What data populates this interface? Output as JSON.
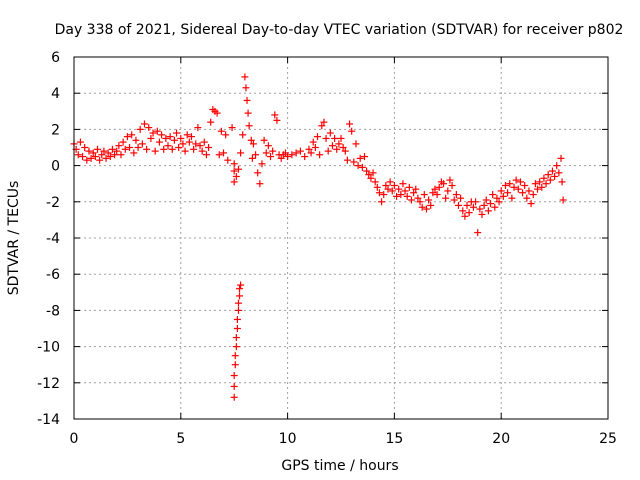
{
  "chart_data": {
    "type": "scatter",
    "title": "Day 338 of 2021, Sidereal Day-to-day VTEC variation (SDTVAR) for receiver p802",
    "xlabel": "GPS time / hours",
    "ylabel": "SDTVAR / TECUs",
    "xlim": [
      0,
      25
    ],
    "ylim": [
      -14,
      6
    ],
    "x_ticks": [
      0,
      5,
      10,
      15,
      20,
      25
    ],
    "y_ticks": [
      -14,
      -12,
      -10,
      -8,
      -6,
      -4,
      -2,
      0,
      2,
      4,
      6
    ],
    "grid": true,
    "marker": "+",
    "series": [
      {
        "name": "SDTVAR",
        "color": "#ff0000",
        "points": [
          [
            0.0,
            1.2
          ],
          [
            0.1,
            0.9
          ],
          [
            0.2,
            0.6
          ],
          [
            0.3,
            1.3
          ],
          [
            0.4,
            0.5
          ],
          [
            0.5,
            1.0
          ],
          [
            0.6,
            0.3
          ],
          [
            0.7,
            0.8
          ],
          [
            0.8,
            0.4
          ],
          [
            0.9,
            0.7
          ],
          [
            1.0,
            0.5
          ],
          [
            1.1,
            0.9
          ],
          [
            1.2,
            0.3
          ],
          [
            1.3,
            0.6
          ],
          [
            1.4,
            0.8
          ],
          [
            1.5,
            0.4
          ],
          [
            1.6,
            0.7
          ],
          [
            1.7,
            0.5
          ],
          [
            1.8,
            0.9
          ],
          [
            1.9,
            0.6
          ],
          [
            2.0,
            0.8
          ],
          [
            2.1,
            1.1
          ],
          [
            2.2,
            0.6
          ],
          [
            2.3,
            1.3
          ],
          [
            2.4,
            0.9
          ],
          [
            2.5,
            1.6
          ],
          [
            2.6,
            1.0
          ],
          [
            2.7,
            1.7
          ],
          [
            2.8,
            0.7
          ],
          [
            2.9,
            1.4
          ],
          [
            3.0,
            1.0
          ],
          [
            3.1,
            2.0
          ],
          [
            3.2,
            1.2
          ],
          [
            3.3,
            2.3
          ],
          [
            3.4,
            0.9
          ],
          [
            3.5,
            2.1
          ],
          [
            3.6,
            1.5
          ],
          [
            3.7,
            1.8
          ],
          [
            3.8,
            0.8
          ],
          [
            3.9,
            1.9
          ],
          [
            4.0,
            1.3
          ],
          [
            4.1,
            1.7
          ],
          [
            4.2,
            0.9
          ],
          [
            4.3,
            1.5
          ],
          [
            4.4,
            1.1
          ],
          [
            4.5,
            1.6
          ],
          [
            4.6,
            0.9
          ],
          [
            4.7,
            1.4
          ],
          [
            4.8,
            1.8
          ],
          [
            4.9,
            1.0
          ],
          [
            5.0,
            1.5
          ],
          [
            5.1,
            1.2
          ],
          [
            5.2,
            0.8
          ],
          [
            5.3,
            1.7
          ],
          [
            5.4,
            1.3
          ],
          [
            5.5,
            1.6
          ],
          [
            5.6,
            0.9
          ],
          [
            5.7,
            1.2
          ],
          [
            5.8,
            2.1
          ],
          [
            5.9,
            1.1
          ],
          [
            6.0,
            0.8
          ],
          [
            6.1,
            1.3
          ],
          [
            6.2,
            0.6
          ],
          [
            6.3,
            1.0
          ],
          [
            6.4,
            2.4
          ],
          [
            6.5,
            3.1
          ],
          [
            6.6,
            3.0
          ],
          [
            6.7,
            2.9
          ],
          [
            6.8,
            0.6
          ],
          [
            6.9,
            1.9
          ],
          [
            7.0,
            0.7
          ],
          [
            7.1,
            1.7
          ],
          [
            7.2,
            0.3
          ],
          [
            7.4,
            2.1
          ],
          [
            7.5,
            0.1
          ],
          [
            7.5,
            -0.3
          ],
          [
            7.5,
            -0.9
          ],
          [
            7.6,
            -0.6
          ],
          [
            7.7,
            -0.2
          ],
          [
            7.8,
            0.7
          ],
          [
            7.5,
            -12.8
          ],
          [
            7.5,
            -12.2
          ],
          [
            7.5,
            -11.6
          ],
          [
            7.55,
            -11.0
          ],
          [
            7.55,
            -10.5
          ],
          [
            7.6,
            -10.0
          ],
          [
            7.6,
            -9.5
          ],
          [
            7.65,
            -9.0
          ],
          [
            7.65,
            -8.5
          ],
          [
            7.7,
            -8.0
          ],
          [
            7.7,
            -7.6
          ],
          [
            7.75,
            -7.2
          ],
          [
            7.75,
            -6.8
          ],
          [
            7.8,
            -6.6
          ],
          [
            7.9,
            1.7
          ],
          [
            8.0,
            4.9
          ],
          [
            8.05,
            4.3
          ],
          [
            8.1,
            3.6
          ],
          [
            8.15,
            2.9
          ],
          [
            8.2,
            2.2
          ],
          [
            8.3,
            1.4
          ],
          [
            8.35,
            0.4
          ],
          [
            8.4,
            1.2
          ],
          [
            8.5,
            0.6
          ],
          [
            8.6,
            -0.4
          ],
          [
            8.7,
            -1.0
          ],
          [
            8.8,
            0.1
          ],
          [
            8.9,
            1.4
          ],
          [
            9.0,
            0.7
          ],
          [
            9.1,
            1.1
          ],
          [
            9.2,
            0.5
          ],
          [
            9.3,
            0.8
          ],
          [
            9.4,
            2.8
          ],
          [
            9.5,
            2.5
          ],
          [
            9.6,
            0.6
          ],
          [
            9.7,
            0.4
          ],
          [
            9.8,
            0.6
          ],
          [
            9.9,
            0.7
          ],
          [
            10.0,
            0.5
          ],
          [
            10.2,
            0.6
          ],
          [
            10.4,
            0.7
          ],
          [
            10.6,
            0.8
          ],
          [
            10.8,
            0.5
          ],
          [
            11.0,
            0.9
          ],
          [
            11.1,
            0.7
          ],
          [
            11.2,
            1.3
          ],
          [
            11.3,
            1.0
          ],
          [
            11.4,
            1.6
          ],
          [
            11.5,
            0.6
          ],
          [
            11.6,
            2.2
          ],
          [
            11.7,
            2.4
          ],
          [
            11.8,
            1.5
          ],
          [
            11.9,
            0.8
          ],
          [
            12.0,
            1.8
          ],
          [
            12.1,
            1.1
          ],
          [
            12.2,
            1.5
          ],
          [
            12.3,
            0.9
          ],
          [
            12.4,
            1.2
          ],
          [
            12.5,
            1.5
          ],
          [
            12.6,
            1.0
          ],
          [
            12.7,
            0.8
          ],
          [
            12.8,
            0.3
          ],
          [
            12.9,
            2.3
          ],
          [
            13.0,
            1.9
          ],
          [
            13.1,
            0.2
          ],
          [
            13.2,
            1.2
          ],
          [
            13.3,
            0.0
          ],
          [
            13.4,
            0.4
          ],
          [
            13.5,
            -0.1
          ],
          [
            13.6,
            0.5
          ],
          [
            13.7,
            -0.3
          ],
          [
            13.8,
            -0.5
          ],
          [
            13.9,
            -0.7
          ],
          [
            14.0,
            -0.4
          ],
          [
            14.1,
            -0.9
          ],
          [
            14.2,
            -1.2
          ],
          [
            14.3,
            -1.5
          ],
          [
            14.4,
            -2.0
          ],
          [
            14.5,
            -1.6
          ],
          [
            14.6,
            -1.1
          ],
          [
            14.7,
            -1.3
          ],
          [
            14.8,
            -0.9
          ],
          [
            14.9,
            -1.4
          ],
          [
            15.0,
            -1.1
          ],
          [
            15.1,
            -1.7
          ],
          [
            15.2,
            -1.3
          ],
          [
            15.3,
            -1.6
          ],
          [
            15.4,
            -1.0
          ],
          [
            15.5,
            -1.4
          ],
          [
            15.6,
            -1.7
          ],
          [
            15.7,
            -1.2
          ],
          [
            15.8,
            -1.9
          ],
          [
            15.9,
            -1.5
          ],
          [
            16.0,
            -1.3
          ],
          [
            16.1,
            -1.8
          ],
          [
            16.2,
            -2.0
          ],
          [
            16.3,
            -2.3
          ],
          [
            16.4,
            -1.6
          ],
          [
            16.5,
            -2.4
          ],
          [
            16.6,
            -1.9
          ],
          [
            16.7,
            -2.2
          ],
          [
            16.8,
            -1.5
          ],
          [
            16.9,
            -1.3
          ],
          [
            17.0,
            -1.6
          ],
          [
            17.1,
            -1.2
          ],
          [
            17.2,
            -0.9
          ],
          [
            17.3,
            -1.0
          ],
          [
            17.4,
            -1.8
          ],
          [
            17.5,
            -1.4
          ],
          [
            17.6,
            -0.8
          ],
          [
            17.7,
            -1.1
          ],
          [
            17.8,
            -1.9
          ],
          [
            17.9,
            -1.6
          ],
          [
            18.0,
            -2.2
          ],
          [
            18.1,
            -1.8
          ],
          [
            18.2,
            -2.5
          ],
          [
            18.3,
            -2.8
          ],
          [
            18.4,
            -2.2
          ],
          [
            18.5,
            -2.6
          ],
          [
            18.6,
            -2.0
          ],
          [
            18.7,
            -2.3
          ],
          [
            18.8,
            -2.0
          ],
          [
            18.9,
            -3.7
          ],
          [
            19.0,
            -2.4
          ],
          [
            19.1,
            -2.7
          ],
          [
            19.2,
            -2.2
          ],
          [
            19.3,
            -1.9
          ],
          [
            19.4,
            -2.5
          ],
          [
            19.5,
            -2.1
          ],
          [
            19.6,
            -1.6
          ],
          [
            19.7,
            -2.3
          ],
          [
            19.8,
            -1.8
          ],
          [
            19.9,
            -2.0
          ],
          [
            20.0,
            -1.4
          ],
          [
            20.1,
            -1.7
          ],
          [
            20.2,
            -1.1
          ],
          [
            20.3,
            -1.5
          ],
          [
            20.4,
            -1.0
          ],
          [
            20.5,
            -1.8
          ],
          [
            20.6,
            -1.2
          ],
          [
            20.7,
            -0.8
          ],
          [
            20.8,
            -1.3
          ],
          [
            20.9,
            -0.9
          ],
          [
            21.0,
            -1.5
          ],
          [
            21.1,
            -1.1
          ],
          [
            21.2,
            -1.8
          ],
          [
            21.3,
            -1.4
          ],
          [
            21.4,
            -2.1
          ],
          [
            21.5,
            -1.6
          ],
          [
            21.6,
            -1.0
          ],
          [
            21.7,
            -1.3
          ],
          [
            21.8,
            -0.9
          ],
          [
            21.9,
            -1.2
          ],
          [
            22.0,
            -0.7
          ],
          [
            22.1,
            -1.0
          ],
          [
            22.2,
            -0.5
          ],
          [
            22.3,
            -0.8
          ],
          [
            22.4,
            -0.3
          ],
          [
            22.5,
            -0.6
          ],
          [
            22.6,
            0.0
          ],
          [
            22.7,
            -0.4
          ],
          [
            22.8,
            0.4
          ],
          [
            22.85,
            -0.9
          ],
          [
            22.9,
            -1.9
          ]
        ]
      }
    ]
  }
}
